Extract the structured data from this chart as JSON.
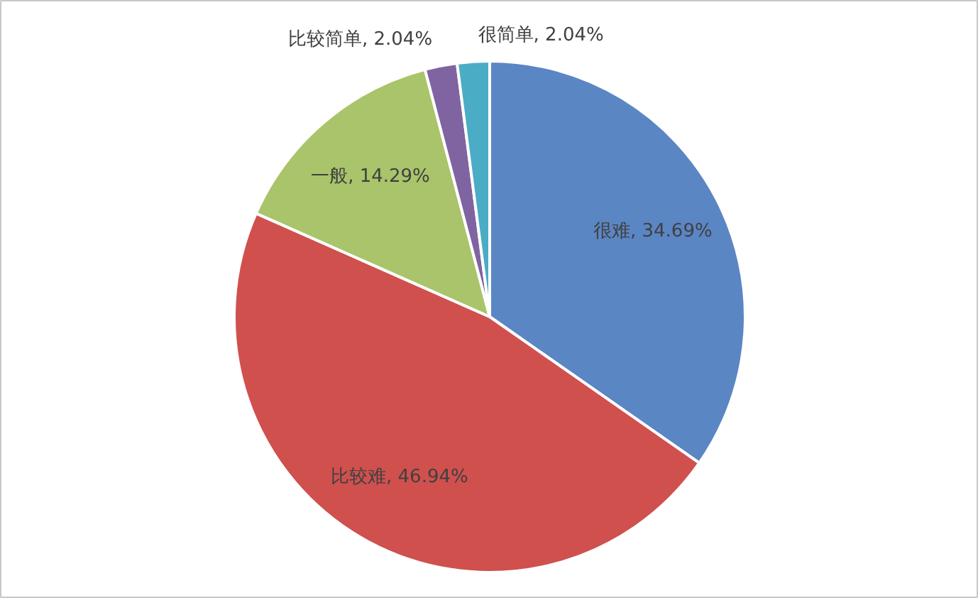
{
  "chart_data": {
    "type": "pie",
    "categories": [
      "很难",
      "比较难",
      "一般",
      "比较简单",
      "很简单"
    ],
    "values": [
      34.69,
      46.94,
      14.29,
      2.04,
      2.04
    ],
    "colors": [
      "#5b86c4",
      "#d0504e",
      "#a9c46a",
      "#8064a2",
      "#4bacc6"
    ],
    "value_labels": [
      "34.69%",
      "46.94%",
      "14.29%",
      "2.04%",
      "2.04%"
    ],
    "legend": false
  }
}
